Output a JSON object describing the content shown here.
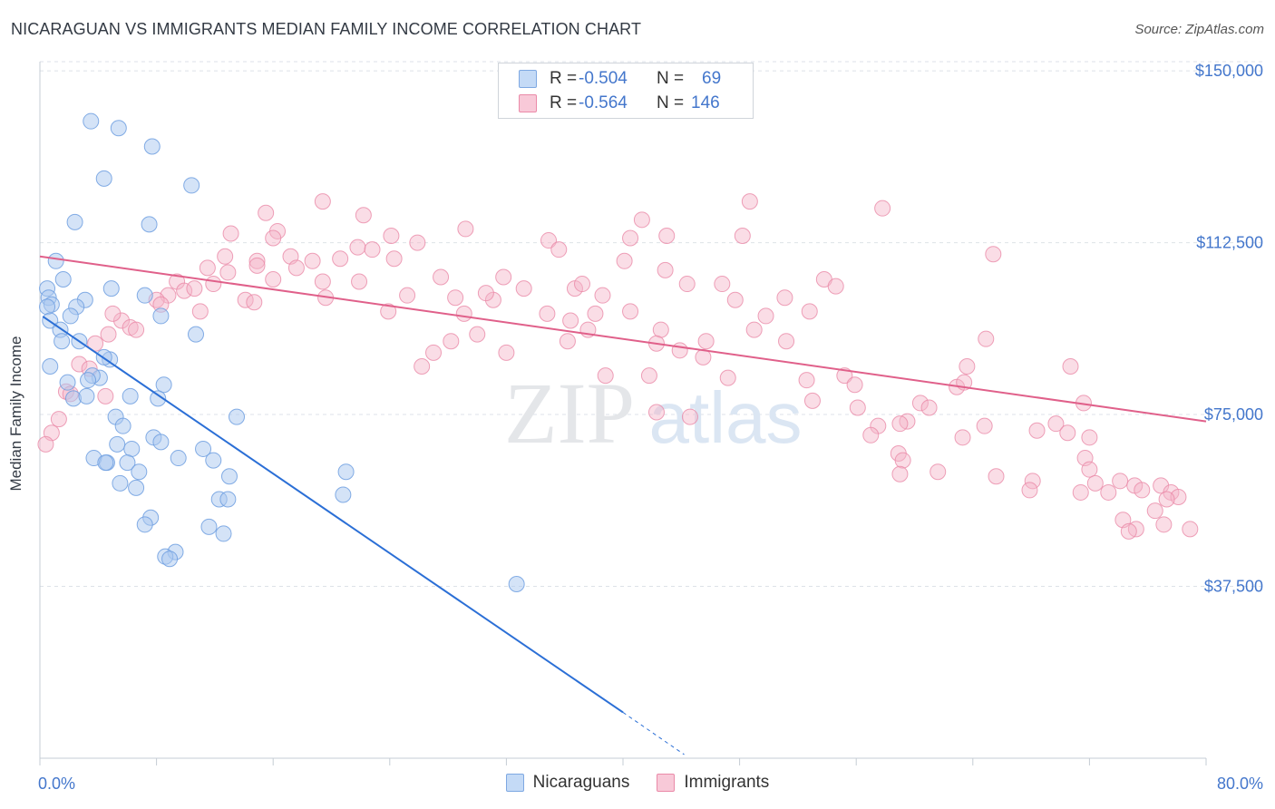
{
  "header": {
    "title": "NICARAGUAN VS IMMIGRANTS MEDIAN FAMILY INCOME CORRELATION CHART",
    "source": "Source: ZipAtlas.com"
  },
  "watermark": {
    "zip": "ZIP",
    "atlas": "atlas"
  },
  "legend": {
    "rows": [
      {
        "r_label": "R =",
        "r_value": "-0.504",
        "n_label": "N =",
        "n_value": "69",
        "color": "#a9c8f0"
      },
      {
        "r_label": "R =",
        "r_value": "-0.564",
        "n_label": "N =",
        "n_value": "146",
        "color": "#f5b3c8"
      }
    ]
  },
  "bottom_legend": [
    {
      "label": "Nicaraguans",
      "color": "#a9c8f0"
    },
    {
      "label": "Immigrants",
      "color": "#f5b3c8"
    }
  ],
  "colors": {
    "blue_fill": "#a9c8f0",
    "blue_stroke": "#6f9fe0",
    "blue_line": "#2b6fd6",
    "pink_fill": "#f5b3c8",
    "pink_stroke": "#ea8aa8",
    "pink_line": "#e0608a",
    "grid": "#dde2e8",
    "axis_text": "#4477cc"
  },
  "chart_data": {
    "type": "scatter",
    "title": "NICARAGUAN VS IMMIGRANTS MEDIAN FAMILY INCOME CORRELATION CHART",
    "xlabel": "",
    "ylabel": "Median Family Income",
    "xlim": [
      0,
      80
    ],
    "ylim": [
      0,
      152000
    ],
    "x_tick_labels": [
      "0.0%",
      "80.0%"
    ],
    "y_ticks": [
      37500,
      75000,
      112500,
      150000
    ],
    "y_tick_labels": [
      "$37,500",
      "$75,000",
      "$112,500",
      "$150,000"
    ],
    "grid": true,
    "legend_position": "top-center",
    "series": [
      {
        "name": "Nicaraguans",
        "trend": {
          "x": [
            0.2,
            40,
            44.2
          ],
          "y": [
            96400,
            10000,
            800
          ],
          "dashed_from_x": 40
        },
        "points": [
          [
            3.5,
            139000
          ],
          [
            5.4,
            137500
          ],
          [
            7.7,
            133500
          ],
          [
            4.4,
            126500
          ],
          [
            10.4,
            125000
          ],
          [
            2.4,
            117000
          ],
          [
            7.5,
            116500
          ],
          [
            1.1,
            108500
          ],
          [
            0.5,
            102500
          ],
          [
            1.6,
            104500
          ],
          [
            0.6,
            100500
          ],
          [
            0.8,
            99000
          ],
          [
            0.5,
            98500
          ],
          [
            3.1,
            100000
          ],
          [
            4.9,
            102500
          ],
          [
            7.2,
            101000
          ],
          [
            2.5,
            98500
          ],
          [
            0.7,
            95500
          ],
          [
            2.1,
            96500
          ],
          [
            8.3,
            96500
          ],
          [
            1.4,
            93500
          ],
          [
            10.7,
            92500
          ],
          [
            1.5,
            91000
          ],
          [
            2.7,
            91000
          ],
          [
            0.7,
            85500
          ],
          [
            4.8,
            87000
          ],
          [
            4.4,
            87500
          ],
          [
            4.1,
            83000
          ],
          [
            3.6,
            83500
          ],
          [
            3.3,
            82500
          ],
          [
            1.9,
            82000
          ],
          [
            8.5,
            81500
          ],
          [
            6.2,
            79000
          ],
          [
            2.3,
            78500
          ],
          [
            3.2,
            79000
          ],
          [
            8.1,
            78500
          ],
          [
            5.2,
            74500
          ],
          [
            5.7,
            72500
          ],
          [
            13.5,
            74500
          ],
          [
            7.8,
            70000
          ],
          [
            8.3,
            69000
          ],
          [
            5.3,
            68500
          ],
          [
            6.3,
            67500
          ],
          [
            11.2,
            67500
          ],
          [
            3.7,
            65500
          ],
          [
            4.6,
            64500
          ],
          [
            4.5,
            64500
          ],
          [
            6.0,
            64500
          ],
          [
            9.5,
            65500
          ],
          [
            11.9,
            65000
          ],
          [
            6.8,
            62500
          ],
          [
            13.0,
            61500
          ],
          [
            21.0,
            62500
          ],
          [
            5.5,
            60000
          ],
          [
            6.6,
            59000
          ],
          [
            12.3,
            56500
          ],
          [
            12.9,
            56500
          ],
          [
            20.8,
            57500
          ],
          [
            7.6,
            52500
          ],
          [
            7.2,
            51000
          ],
          [
            11.6,
            50500
          ],
          [
            12.6,
            49000
          ],
          [
            9.3,
            45000
          ],
          [
            8.6,
            44000
          ],
          [
            8.9,
            43500
          ],
          [
            32.7,
            38000
          ]
        ]
      },
      {
        "name": "Immigrants",
        "trend": {
          "x": [
            0,
            80
          ],
          "y": [
            109500,
            73500
          ]
        },
        "points": [
          [
            19.4,
            121500
          ],
          [
            48.7,
            121500
          ],
          [
            57.8,
            120000
          ],
          [
            15.5,
            119000
          ],
          [
            22.2,
            118500
          ],
          [
            41.3,
            117500
          ],
          [
            16.3,
            115000
          ],
          [
            13.1,
            114500
          ],
          [
            29.2,
            115500
          ],
          [
            24.1,
            114000
          ],
          [
            34.9,
            113000
          ],
          [
            40.5,
            113500
          ],
          [
            43.0,
            114000
          ],
          [
            48.2,
            114000
          ],
          [
            16.0,
            113500
          ],
          [
            21.8,
            111500
          ],
          [
            25.9,
            112500
          ],
          [
            22.8,
            111000
          ],
          [
            35.6,
            111000
          ],
          [
            12.7,
            109500
          ],
          [
            14.9,
            108500
          ],
          [
            17.2,
            109500
          ],
          [
            18.7,
            108500
          ],
          [
            20.6,
            109000
          ],
          [
            24.3,
            109000
          ],
          [
            40.1,
            108500
          ],
          [
            65.4,
            110000
          ],
          [
            11.5,
            107000
          ],
          [
            14.9,
            107500
          ],
          [
            17.6,
            107000
          ],
          [
            12.9,
            106000
          ],
          [
            16.0,
            104500
          ],
          [
            19.4,
            104000
          ],
          [
            27.5,
            105000
          ],
          [
            42.9,
            106500
          ],
          [
            21.9,
            104000
          ],
          [
            31.8,
            105000
          ],
          [
            11.9,
            103500
          ],
          [
            44.4,
            103500
          ],
          [
            9.4,
            104000
          ],
          [
            53.8,
            104500
          ],
          [
            9.9,
            102000
          ],
          [
            33.2,
            102500
          ],
          [
            36.7,
            102500
          ],
          [
            37.2,
            103500
          ],
          [
            46.8,
            103500
          ],
          [
            54.6,
            103000
          ],
          [
            25.2,
            101000
          ],
          [
            28.5,
            100500
          ],
          [
            31.1,
            100000
          ],
          [
            8.8,
            101000
          ],
          [
            10.6,
            102500
          ],
          [
            14.1,
            100000
          ],
          [
            14.7,
            99500
          ],
          [
            19.6,
            100500
          ],
          [
            30.6,
            101500
          ],
          [
            38.6,
            101000
          ],
          [
            51.1,
            100500
          ],
          [
            47.7,
            100000
          ],
          [
            8.0,
            100000
          ],
          [
            8.3,
            99000
          ],
          [
            11.0,
            97500
          ],
          [
            23.9,
            97500
          ],
          [
            40.5,
            97500
          ],
          [
            52.8,
            97500
          ],
          [
            34.8,
            97000
          ],
          [
            29.1,
            97000
          ],
          [
            38.1,
            97000
          ],
          [
            49.8,
            96500
          ],
          [
            5.6,
            95500
          ],
          [
            6.2,
            94000
          ],
          [
            36.4,
            95500
          ],
          [
            5.0,
            97000
          ],
          [
            6.6,
            93500
          ],
          [
            4.7,
            92500
          ],
          [
            42.6,
            93500
          ],
          [
            49.0,
            93500
          ],
          [
            37.6,
            93500
          ],
          [
            30.0,
            92500
          ],
          [
            28.2,
            91000
          ],
          [
            36.2,
            91000
          ],
          [
            45.7,
            91000
          ],
          [
            51.2,
            91000
          ],
          [
            3.8,
            90500
          ],
          [
            43.9,
            89000
          ],
          [
            42.3,
            90500
          ],
          [
            45.5,
            87500
          ],
          [
            27.0,
            88500
          ],
          [
            32.0,
            88500
          ],
          [
            64.9,
            91500
          ],
          [
            2.7,
            86000
          ],
          [
            3.4,
            85000
          ],
          [
            26.2,
            85500
          ],
          [
            63.6,
            85500
          ],
          [
            70.7,
            85500
          ],
          [
            38.8,
            83500
          ],
          [
            41.8,
            83500
          ],
          [
            47.2,
            83000
          ],
          [
            52.6,
            82500
          ],
          [
            55.2,
            83500
          ],
          [
            55.9,
            81500
          ],
          [
            62.9,
            81000
          ],
          [
            63.4,
            82000
          ],
          [
            1.8,
            80000
          ],
          [
            53.0,
            78000
          ],
          [
            56.1,
            76500
          ],
          [
            60.4,
            77500
          ],
          [
            71.6,
            77500
          ],
          [
            61.0,
            76500
          ],
          [
            2.1,
            79500
          ],
          [
            4.5,
            79000
          ],
          [
            42.3,
            75500
          ],
          [
            44.6,
            74500
          ],
          [
            57.5,
            72500
          ],
          [
            59.5,
            73500
          ],
          [
            59.0,
            73000
          ],
          [
            64.8,
            72500
          ],
          [
            69.7,
            73000
          ],
          [
            57.0,
            70500
          ],
          [
            63.3,
            70000
          ],
          [
            68.4,
            71500
          ],
          [
            70.5,
            71000
          ],
          [
            72.0,
            70000
          ],
          [
            1.3,
            74000
          ],
          [
            0.8,
            71000
          ],
          [
            0.4,
            68500
          ],
          [
            58.9,
            66500
          ],
          [
            59.2,
            65000
          ],
          [
            71.7,
            65500
          ],
          [
            72.0,
            63000
          ],
          [
            59.0,
            62000
          ],
          [
            65.6,
            61500
          ],
          [
            72.4,
            60000
          ],
          [
            74.1,
            60500
          ],
          [
            75.1,
            59500
          ],
          [
            76.9,
            59500
          ],
          [
            77.6,
            58000
          ],
          [
            78.1,
            57000
          ],
          [
            77.3,
            56500
          ],
          [
            76.5,
            54000
          ],
          [
            61.6,
            62500
          ],
          [
            71.4,
            58000
          ],
          [
            75.6,
            58500
          ],
          [
            73.3,
            58000
          ],
          [
            68.1,
            60500
          ],
          [
            67.9,
            58500
          ],
          [
            74.3,
            52000
          ],
          [
            77.1,
            51000
          ],
          [
            75.2,
            50000
          ],
          [
            78.9,
            50000
          ],
          [
            74.7,
            49500
          ]
        ]
      }
    ]
  }
}
